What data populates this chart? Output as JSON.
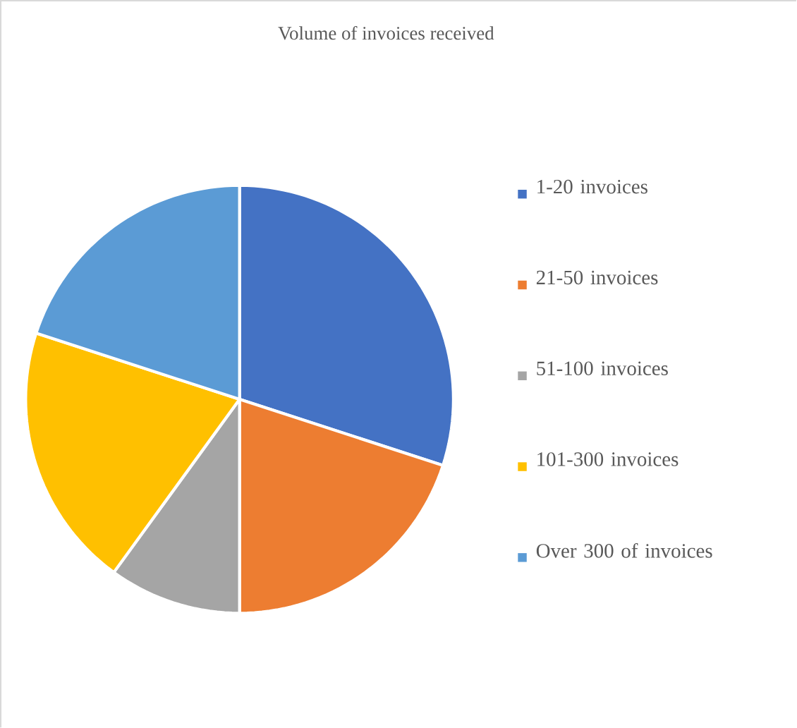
{
  "chart_data": {
    "type": "pie",
    "title": "Volume of invoices received",
    "categories": [
      "1-20 invoices",
      "21-50 invoices",
      "51-100  invoices",
      "101-300  invoices",
      "Over 300 of invoices"
    ],
    "values": [
      30,
      20,
      10,
      20,
      20
    ],
    "colors": [
      "#4472c4",
      "#ed7d31",
      "#a5a5a5",
      "#ffc000",
      "#5b9bd5"
    ],
    "legend": "right"
  }
}
